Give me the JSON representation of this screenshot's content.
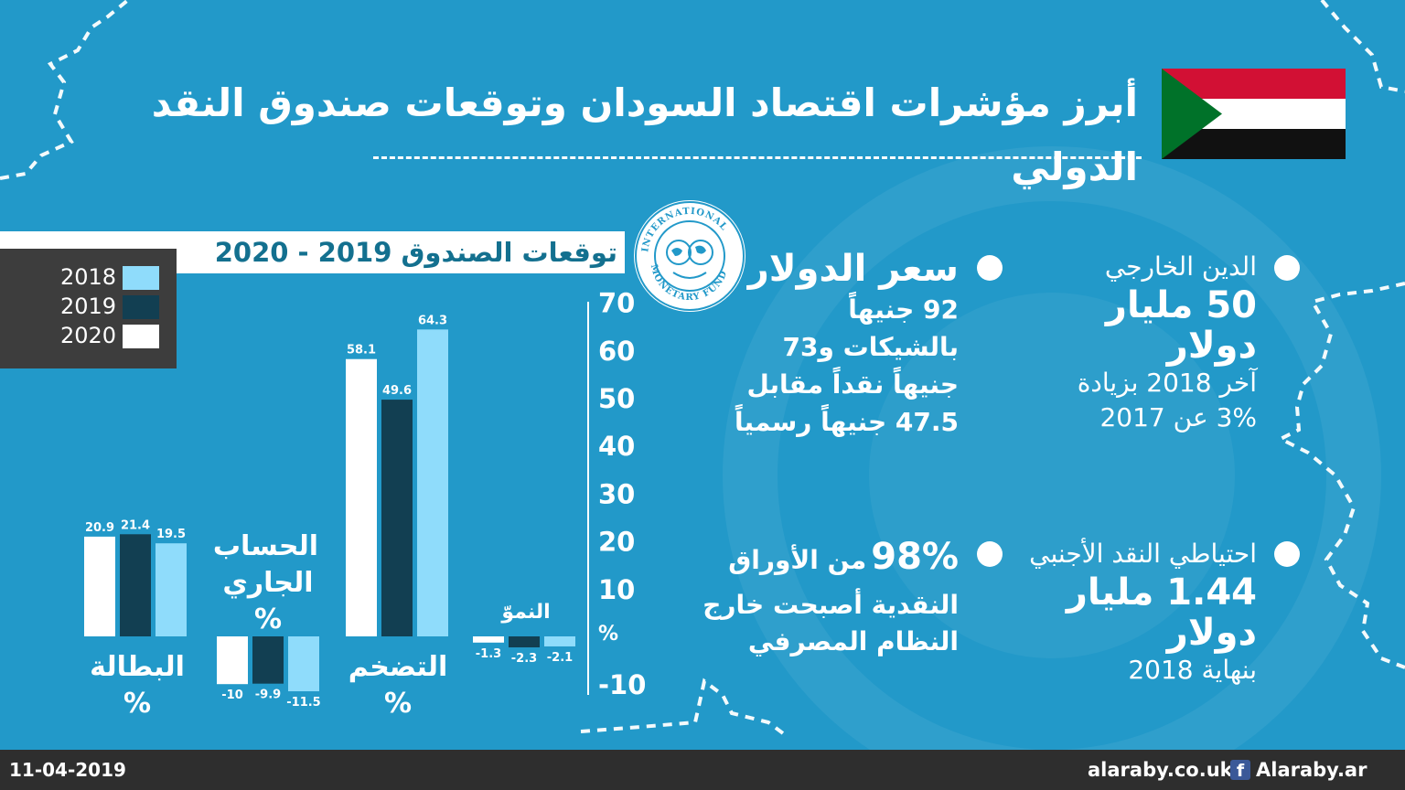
{
  "header": {
    "title": "أبرز مؤشرات اقتصاد السودان وتوقعات صندوق النقد الدولي"
  },
  "colors": {
    "background": "#2299c9",
    "series_2018": "#8fdcfb",
    "series_2019": "#123f52",
    "series_2020": "#ffffff"
  },
  "logo": {
    "icon": "imf-seal-icon"
  },
  "chart_data": {
    "type": "bar",
    "title": "توقعات الصندوق 2019 - 2020",
    "ylabel": "%",
    "ylim": [
      -10,
      70
    ],
    "yticks": [
      "70",
      "60",
      "50",
      "40",
      "30",
      "20",
      "10",
      "%",
      "-10"
    ],
    "legend_position": "top-left",
    "categories": [
      {
        "name": "البطالة",
        "unit": "%",
        "label_position": "below"
      },
      {
        "name": "الحساب الجاري",
        "unit": "%",
        "label_position": "above"
      },
      {
        "name": "التضخم",
        "unit": "%",
        "label_position": "below"
      },
      {
        "name": "النموّ",
        "unit": "",
        "label_position": "above"
      }
    ],
    "series": [
      {
        "name": "2018",
        "values": [
          19.5,
          -11.5,
          64.3,
          -2.1
        ]
      },
      {
        "name": "2019",
        "values": [
          21.4,
          -9.9,
          49.6,
          -2.3
        ]
      },
      {
        "name": "2020",
        "values": [
          20.9,
          -10,
          58.1,
          -1.3
        ]
      }
    ],
    "draw_order": [
      "2020",
      "2019",
      "2018"
    ],
    "value_labels": {
      "2018": [
        "19.5",
        "-11.5",
        "64.3",
        "-2.1"
      ],
      "2019": [
        "21.4",
        "-9.9",
        "49.6",
        "-2.3"
      ],
      "2020": [
        "20.9",
        "-10",
        "58.1",
        "-1.3"
      ]
    }
  },
  "indicators": {
    "debt": {
      "label": "الدين الخارجي",
      "big_line1": "50 مليار",
      "big_line2": "دولار",
      "text_line1": "آخر 2018 بزيادة",
      "text_line2": "3% عن 2017"
    },
    "dollar": {
      "label": "سعر الدولار",
      "line1": "92 جنيهاً",
      "line2": "بالشيكات و73",
      "line3": "جنيهاً نقداً مقابل",
      "line4": "47.5 جنيهاً رسمياً"
    },
    "reserves": {
      "label": "احتياطي النقد الأجنبي",
      "big_line1": "1.44 مليار",
      "big_line2": "دولار",
      "text_line1": "بنهاية 2018"
    },
    "banknotes": {
      "big": "98%",
      "line1": "من الأوراق",
      "line2": "النقدية أصبحت خارج",
      "line3": "النظام المصرفي"
    }
  },
  "footer": {
    "date": "11-04-2019",
    "site": "alaraby.co.uk",
    "facebook_icon": "facebook-icon",
    "facebook": "Alaraby.ar"
  }
}
